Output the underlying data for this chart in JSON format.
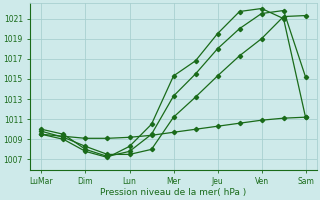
{
  "xlabel": "Pression niveau de la mer( hPa )",
  "background_color": "#ceeaea",
  "grid_color": "#a8d0d0",
  "line_color": "#1a6b1a",
  "ylim": [
    1006.0,
    1022.5
  ],
  "yticks": [
    1007,
    1009,
    1011,
    1013,
    1015,
    1017,
    1019,
    1021
  ],
  "xtick_labels": [
    "LuMar",
    "Dim",
    "Lun",
    "Mer",
    "Jeu",
    "Ven",
    "Sam"
  ],
  "xtick_positions": [
    0,
    2,
    4,
    6,
    8,
    10,
    12
  ],
  "x": [
    0,
    1,
    2,
    3,
    4,
    5,
    6,
    7,
    8,
    9,
    10,
    11,
    12
  ],
  "series_slow": [
    1009.5,
    1009.3,
    1009.1,
    1009.1,
    1009.2,
    1009.4,
    1009.7,
    1010.0,
    1010.3,
    1010.6,
    1010.9,
    1011.1,
    1011.2
  ],
  "series_low": [
    1009.8,
    1009.2,
    1008.3,
    1007.5,
    1007.5,
    1008.0,
    1011.2,
    1013.2,
    1015.3,
    1017.3,
    1019.0,
    1021.2,
    1021.3
  ],
  "series_mid": [
    1010.0,
    1009.5,
    1008.0,
    1007.3,
    1007.8,
    1009.5,
    1013.3,
    1015.5,
    1018.0,
    1020.0,
    1021.5,
    1021.8,
    1015.2
  ],
  "series_high": [
    1009.5,
    1009.0,
    1007.8,
    1007.2,
    1008.3,
    1010.5,
    1015.3,
    1016.8,
    1019.5,
    1021.7,
    1022.0,
    1021.0,
    1011.2
  ]
}
